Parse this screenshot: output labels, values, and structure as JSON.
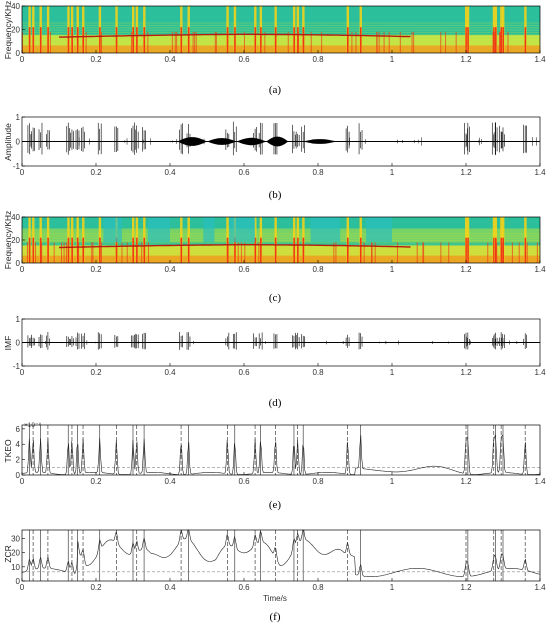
{
  "chart_data": [
    {
      "type": "heatmap",
      "panel": "a",
      "caption": "(a)",
      "ylabel": "Frequency/KHz",
      "x_ticks": [
        "0",
        "0.2",
        "0.4",
        "0.6",
        "0.8",
        "1",
        "1.2",
        "1.4"
      ],
      "y_ticks": [
        "0",
        "20",
        "40"
      ],
      "xlim": [
        0,
        1.4
      ],
      "ylim": [
        0,
        40
      ]
    },
    {
      "type": "line",
      "panel": "b",
      "caption": "(b)",
      "ylabel": "Amplitude",
      "x_ticks": [
        "0",
        "0.2",
        "0.4",
        "0.6",
        "0.8",
        "1",
        "1.2",
        "1.4"
      ],
      "y_ticks": [
        "-1",
        "0",
        "1"
      ],
      "xlim": [
        0,
        1.4
      ],
      "ylim": [
        -1,
        1
      ]
    },
    {
      "type": "heatmap",
      "panel": "c",
      "caption": "(c)",
      "ylabel": "Frequency/KHz",
      "x_ticks": [
        "0",
        "0.2",
        "0.4",
        "0.6",
        "0.8",
        "1",
        "1.2",
        "1.4"
      ],
      "y_ticks": [
        "0",
        "20",
        "40"
      ],
      "xlim": [
        0,
        1.4
      ],
      "ylim": [
        0,
        40
      ]
    },
    {
      "type": "line",
      "panel": "d",
      "caption": "(d)",
      "ylabel": "IMF",
      "x_ticks": [
        "0",
        "0.2",
        "0.4",
        "0.6",
        "0.8",
        "1",
        "1.2",
        "1.4"
      ],
      "y_ticks": [
        "-1",
        "0",
        "1"
      ],
      "xlim": [
        0,
        1.4
      ],
      "ylim": [
        -1,
        1
      ]
    },
    {
      "type": "line",
      "panel": "e",
      "caption": "(e)",
      "ylabel": "TKEO",
      "exponent": "×10⁻⁸",
      "x_ticks": [
        "0",
        "0.2",
        "0.4",
        "0.6",
        "0.8",
        "1",
        "1.2",
        "1.4"
      ],
      "y_ticks": [
        "0",
        "2",
        "4",
        "6"
      ],
      "xlim": [
        0,
        1.4
      ],
      "ylim": [
        0,
        6.5
      ],
      "threshold": 1.0,
      "onset_lines": [
        0.02,
        0.03,
        0.05,
        0.07,
        0.125,
        0.135,
        0.15,
        0.165,
        0.21,
        0.255,
        0.3,
        0.31,
        0.33,
        0.43,
        0.45,
        0.555,
        0.575,
        0.63,
        0.645,
        0.685,
        0.735,
        0.745,
        0.76,
        0.88,
        0.915,
        1.2,
        1.205,
        1.275,
        1.28,
        1.295,
        1.3,
        1.36
      ]
    },
    {
      "type": "line",
      "panel": "f",
      "caption": "(f)",
      "ylabel": "ZCR",
      "xlabel": "Time/s",
      "x_ticks": [
        "0",
        "0.2",
        "0.4",
        "0.6",
        "0.8",
        "1",
        "1.2",
        "1.4"
      ],
      "y_ticks": [
        "0",
        "10",
        "20",
        "30"
      ],
      "xlim": [
        0,
        1.4
      ],
      "ylim": [
        0,
        36
      ],
      "threshold": 6.5,
      "onset_lines": [
        0.02,
        0.03,
        0.05,
        0.07,
        0.125,
        0.135,
        0.15,
        0.165,
        0.21,
        0.255,
        0.3,
        0.31,
        0.33,
        0.43,
        0.45,
        0.555,
        0.575,
        0.63,
        0.645,
        0.685,
        0.735,
        0.745,
        0.76,
        0.88,
        0.915,
        1.2,
        1.205,
        1.275,
        1.28,
        1.295,
        1.3,
        1.36
      ]
    }
  ],
  "colors": {
    "spec_base": "#2bbf9c",
    "spec_mid": "#c8e63a",
    "spec_hot": "#ee3a17",
    "spec_yellow": "#f4d21a",
    "line": "#000000",
    "threshold": "#888888"
  }
}
